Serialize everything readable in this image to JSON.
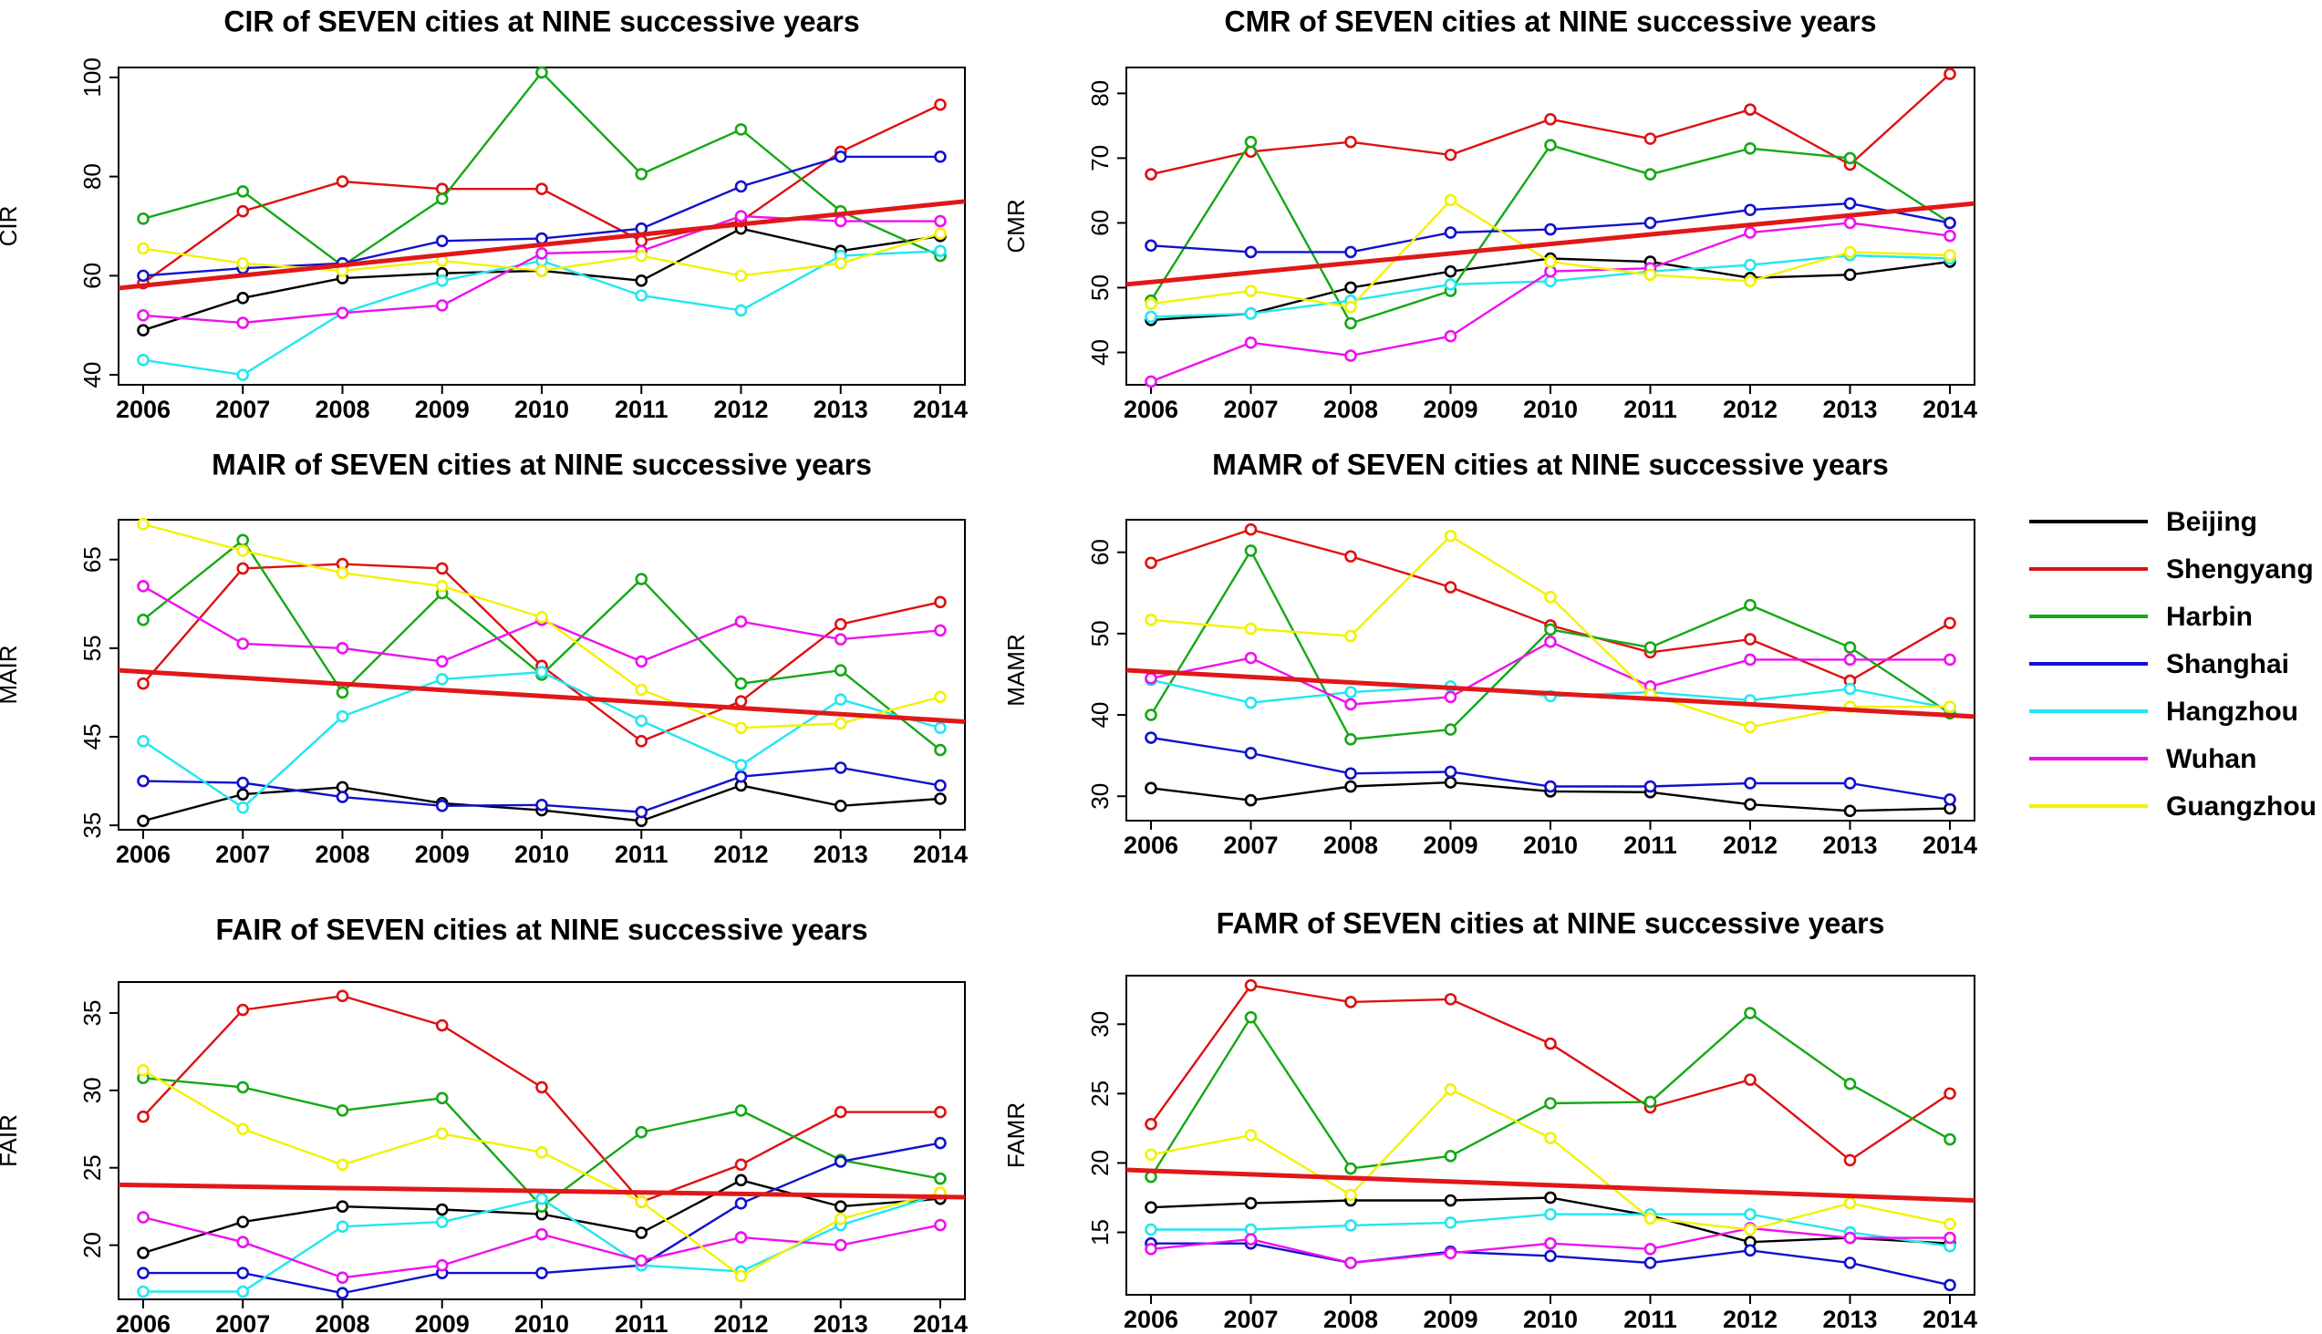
{
  "chart_data": [
    {
      "type": "line",
      "title": "CIR of SEVEN cities at NINE successive years",
      "xlabel": "",
      "ylabel": "CIR",
      "x": [
        2006,
        2007,
        2008,
        2009,
        2010,
        2011,
        2012,
        2013,
        2014
      ],
      "ylim": [
        38,
        102
      ],
      "yticks": [
        40,
        60,
        80,
        100
      ],
      "series": [
        {
          "name": "Beijing",
          "values": [
            49,
            55.5,
            59.5,
            60.5,
            61,
            59,
            69.5,
            65,
            68
          ]
        },
        {
          "name": "Shengyang",
          "values": [
            58.5,
            73,
            79,
            77.5,
            77.5,
            67,
            71,
            85,
            94.5
          ]
        },
        {
          "name": "Harbin",
          "values": [
            71.5,
            77,
            62,
            75.5,
            101,
            80.5,
            89.5,
            73,
            64
          ]
        },
        {
          "name": "Shanghai",
          "values": [
            60,
            61.5,
            62.5,
            67,
            67.5,
            69.5,
            78,
            84,
            84
          ]
        },
        {
          "name": "Hangzhou",
          "values": [
            43,
            40,
            52.5,
            59,
            63,
            56,
            53,
            64,
            65
          ]
        },
        {
          "name": "Wuhan",
          "values": [
            52,
            50.5,
            52.5,
            54,
            64.5,
            65,
            72,
            71,
            71
          ]
        },
        {
          "name": "Guangzhou",
          "values": [
            65.5,
            62.5,
            61,
            63,
            61,
            64,
            60,
            62.5,
            68.5
          ]
        }
      ],
      "trend": {
        "name": "trend",
        "start": 57.5,
        "end": 75
      }
    },
    {
      "type": "line",
      "title": "CMR of SEVEN cities at NINE successive years",
      "xlabel": "",
      "ylabel": "CMR",
      "x": [
        2006,
        2007,
        2008,
        2009,
        2010,
        2011,
        2012,
        2013,
        2014
      ],
      "ylim": [
        35,
        84
      ],
      "yticks": [
        40,
        50,
        60,
        70,
        80
      ],
      "series": [
        {
          "name": "Beijing",
          "values": [
            45,
            46,
            50,
            52.5,
            54.5,
            54,
            51.5,
            52,
            54
          ]
        },
        {
          "name": "Shengyang",
          "values": [
            67.5,
            71,
            72.5,
            70.5,
            76,
            73,
            77.5,
            69,
            83
          ]
        },
        {
          "name": "Harbin",
          "values": [
            48,
            72.5,
            44.5,
            49.5,
            72,
            67.5,
            71.5,
            70,
            60
          ]
        },
        {
          "name": "Shanghai",
          "values": [
            56.5,
            55.5,
            55.5,
            58.5,
            59,
            60,
            62,
            63,
            60
          ]
        },
        {
          "name": "Hangzhou",
          "values": [
            45.5,
            46,
            48,
            50.5,
            51,
            52.5,
            53.5,
            55,
            54.5
          ]
        },
        {
          "name": "Wuhan",
          "values": [
            35.5,
            41.5,
            39.5,
            42.5,
            52.5,
            53,
            58.5,
            60,
            58
          ]
        },
        {
          "name": "Guangzhou",
          "values": [
            47.5,
            49.5,
            47,
            63.5,
            54,
            52,
            51,
            55.5,
            55
          ]
        }
      ],
      "trend": {
        "name": "trend",
        "start": 50.5,
        "end": 63
      }
    },
    {
      "type": "line",
      "title": "MAIR of SEVEN cities at NINE successive years",
      "xlabel": "",
      "ylabel": "MAIR",
      "x": [
        2006,
        2007,
        2008,
        2009,
        2010,
        2011,
        2012,
        2013,
        2014
      ],
      "ylim": [
        34.5,
        69.5
      ],
      "yticks": [
        35,
        45,
        55,
        65
      ],
      "series": [
        {
          "name": "Beijing",
          "values": [
            35.5,
            38.5,
            39.3,
            37.5,
            36.7,
            35.5,
            39.5,
            37.2,
            38
          ]
        },
        {
          "name": "Shengyang",
          "values": [
            51,
            64,
            64.5,
            64,
            53,
            44.5,
            49,
            57.7,
            60.2
          ]
        },
        {
          "name": "Harbin",
          "values": [
            58.2,
            67.2,
            50,
            61.2,
            52,
            62.8,
            51,
            52.5,
            43.5
          ]
        },
        {
          "name": "Shanghai",
          "values": [
            40,
            39.8,
            38.2,
            37.2,
            37.3,
            36.5,
            40.5,
            41.5,
            39.5
          ]
        },
        {
          "name": "Hangzhou",
          "values": [
            44.5,
            37,
            47.3,
            51.5,
            52.3,
            46.8,
            41.8,
            49.2,
            46
          ]
        },
        {
          "name": "Wuhan",
          "values": [
            62,
            55.5,
            55,
            53.5,
            58.2,
            53.5,
            58,
            56,
            57
          ]
        },
        {
          "name": "Guangzhou",
          "values": [
            69,
            66,
            63.5,
            62,
            58.5,
            50.3,
            46,
            46.5,
            49.5
          ]
        }
      ],
      "trend": {
        "name": "trend",
        "start": 52.5,
        "end": 46.7
      }
    },
    {
      "type": "line",
      "title": "MAMR of SEVEN cities at NINE successive years",
      "xlabel": "",
      "ylabel": "MAMR",
      "x": [
        2006,
        2007,
        2008,
        2009,
        2010,
        2011,
        2012,
        2013,
        2014
      ],
      "ylim": [
        27,
        64
      ],
      "yticks": [
        30,
        40,
        50,
        60
      ],
      "series": [
        {
          "name": "Beijing",
          "values": [
            31,
            29.5,
            31.2,
            31.7,
            30.6,
            30.5,
            29,
            28.2,
            28.5
          ]
        },
        {
          "name": "Shengyang",
          "values": [
            58.7,
            62.8,
            59.5,
            55.7,
            51,
            47.7,
            49.3,
            44.2,
            51.3
          ]
        },
        {
          "name": "Harbin",
          "values": [
            40,
            60.2,
            37,
            38.2,
            50.5,
            48.3,
            53.5,
            48.3,
            40.2
          ]
        },
        {
          "name": "Shanghai",
          "values": [
            37.2,
            35.3,
            32.8,
            33,
            31.2,
            31.2,
            31.6,
            31.6,
            29.6
          ]
        },
        {
          "name": "Hangzhou",
          "values": [
            44.3,
            41.5,
            42.8,
            43.5,
            42.3,
            42.8,
            41.8,
            43.2,
            40.8
          ]
        },
        {
          "name": "Wuhan",
          "values": [
            44.5,
            47,
            41.3,
            42.2,
            49,
            43.5,
            46.8,
            46.8,
            46.8
          ]
        },
        {
          "name": "Guangzhou",
          "values": [
            51.7,
            50.6,
            49.7,
            62,
            54.5,
            42.5,
            38.5,
            41,
            41
          ]
        }
      ],
      "trend": {
        "name": "trend",
        "start": 45.5,
        "end": 39.8
      }
    },
    {
      "type": "line",
      "title": "FAIR of SEVEN cities at NINE successive years",
      "xlabel": "",
      "ylabel": "FAIR",
      "x": [
        2006,
        2007,
        2008,
        2009,
        2010,
        2011,
        2012,
        2013,
        2014
      ],
      "ylim": [
        16.5,
        37
      ],
      "yticks": [
        20,
        25,
        30,
        35
      ],
      "series": [
        {
          "name": "Beijing",
          "values": [
            19.5,
            21.5,
            22.5,
            22.3,
            22,
            20.8,
            24.2,
            22.5,
            23
          ]
        },
        {
          "name": "Shengyang",
          "values": [
            28.3,
            35.2,
            36.1,
            34.2,
            30.2,
            22.8,
            25.2,
            28.6,
            28.6
          ]
        },
        {
          "name": "Harbin",
          "values": [
            30.8,
            30.2,
            28.7,
            29.5,
            22.5,
            27.3,
            28.7,
            25.5,
            24.3
          ]
        },
        {
          "name": "Shanghai",
          "values": [
            18.2,
            18.2,
            16.9,
            18.2,
            18.2,
            18.7,
            22.7,
            25.4,
            26.6
          ]
        },
        {
          "name": "Hangzhou",
          "values": [
            17,
            17,
            21.2,
            21.5,
            23,
            18.7,
            18.3,
            21.3,
            23.3
          ]
        },
        {
          "name": "Wuhan",
          "values": [
            21.8,
            20.2,
            17.9,
            18.7,
            20.7,
            19,
            20.5,
            20,
            21.3
          ]
        },
        {
          "name": "Guangzhou",
          "values": [
            31.3,
            27.5,
            25.2,
            27.2,
            26,
            22.8,
            18,
            21.7,
            23.4
          ]
        }
      ],
      "trend": {
        "name": "trend",
        "start": 23.9,
        "end": 23.1
      }
    },
    {
      "type": "line",
      "title": "FAMR of SEVEN cities at NINE successive years",
      "xlabel": "",
      "ylabel": "FAMR",
      "x": [
        2006,
        2007,
        2008,
        2009,
        2010,
        2011,
        2012,
        2013,
        2014
      ],
      "ylim": [
        10.5,
        33.5
      ],
      "yticks": [
        15,
        20,
        25,
        30
      ],
      "series": [
        {
          "name": "Beijing",
          "values": [
            16.8,
            17.1,
            17.3,
            17.3,
            17.5,
            16.2,
            14.3,
            14.6,
            14.2
          ]
        },
        {
          "name": "Shengyang",
          "values": [
            22.8,
            32.8,
            31.6,
            31.8,
            28.6,
            24,
            26,
            20.2,
            25
          ]
        },
        {
          "name": "Harbin",
          "values": [
            19,
            30.5,
            19.6,
            20.5,
            24.3,
            24.4,
            30.8,
            25.7,
            21.7
          ]
        },
        {
          "name": "Shanghai",
          "values": [
            14.2,
            14.2,
            12.8,
            13.6,
            13.3,
            12.8,
            13.7,
            12.8,
            11.2
          ]
        },
        {
          "name": "Hangzhou",
          "values": [
            15.2,
            15.2,
            15.5,
            15.7,
            16.3,
            16.3,
            16.3,
            15,
            14
          ]
        },
        {
          "name": "Wuhan",
          "values": [
            13.8,
            14.5,
            12.8,
            13.5,
            14.2,
            13.8,
            15.3,
            14.6,
            14.6
          ]
        },
        {
          "name": "Guangzhou",
          "values": [
            20.6,
            22,
            17.7,
            25.3,
            21.8,
            16,
            15.2,
            17.1,
            15.6
          ]
        }
      ],
      "trend": {
        "name": "trend",
        "start": 19.5,
        "end": 17.3
      }
    }
  ],
  "legend": {
    "placement": "right",
    "entries": [
      {
        "label": "Beijing",
        "color": "#000000"
      },
      {
        "label": "Shengyang",
        "color": "#dd1111"
      },
      {
        "label": "Harbin",
        "color": "#16a816"
      },
      {
        "label": "Shanghai",
        "color": "#1111cc"
      },
      {
        "label": "Hangzhou",
        "color": "#22e6f0"
      },
      {
        "label": "Wuhan",
        "color": "#ee11ee"
      },
      {
        "label": "Guangzhou",
        "color": "#f2f200"
      }
    ]
  },
  "colors": {
    "trend": "#e01818"
  }
}
